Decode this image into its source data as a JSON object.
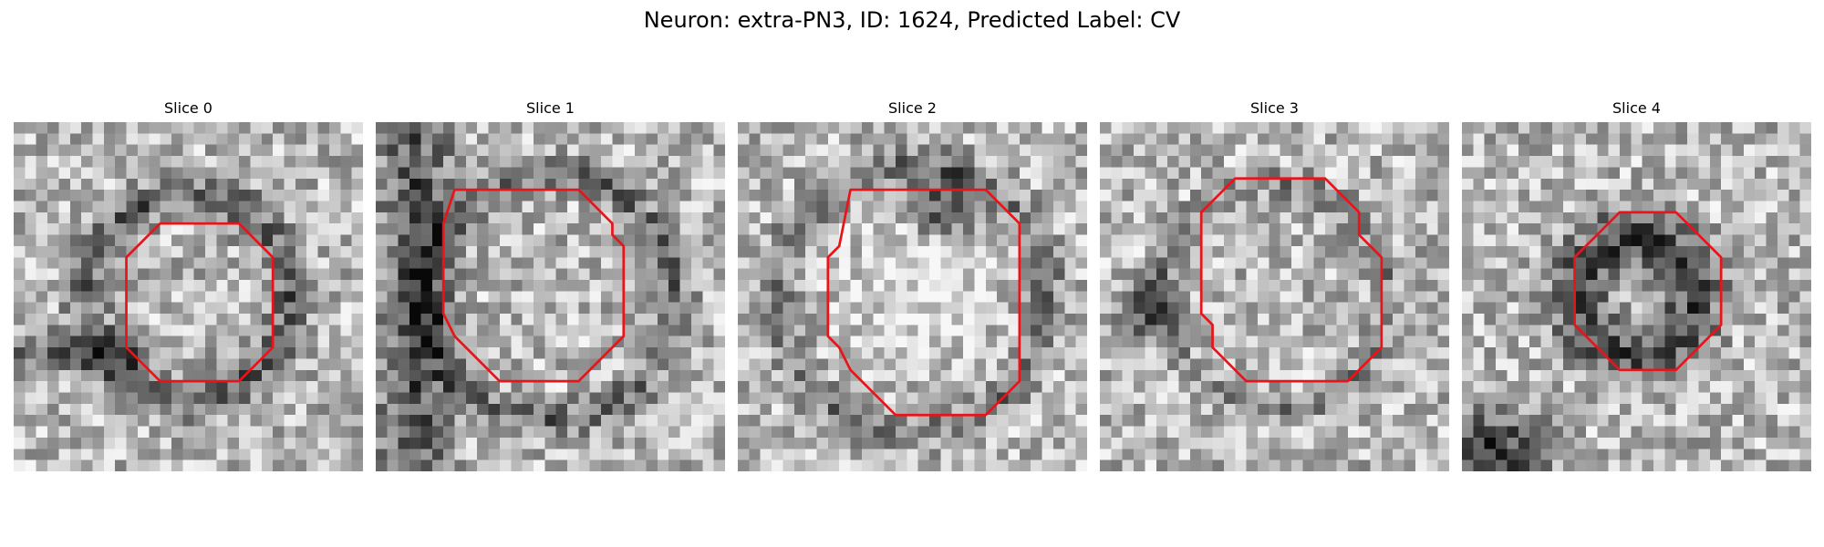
{
  "figure": {
    "title": "Neuron: extra-PN3, ID: 1624, Predicted Label: CV",
    "contour_color": "#e8141a",
    "panels": [
      {
        "title": "Slice 0",
        "seed": 11,
        "dark": "ring",
        "contour": [
          [
            13,
            9
          ],
          [
            20,
            9
          ],
          [
            23,
            12
          ],
          [
            23,
            20
          ],
          [
            20,
            23
          ],
          [
            13,
            23
          ],
          [
            10,
            20
          ],
          [
            10,
            12
          ]
        ]
      },
      {
        "title": "Slice 1",
        "seed": 23,
        "dark": "left",
        "contour": [
          [
            7,
            6
          ],
          [
            18,
            6
          ],
          [
            21,
            9
          ],
          [
            21,
            10
          ],
          [
            22,
            11
          ],
          [
            22,
            19
          ],
          [
            18,
            23
          ],
          [
            11,
            23
          ],
          [
            7,
            19
          ],
          [
            6,
            17
          ],
          [
            6,
            9
          ]
        ]
      },
      {
        "title": "Slice 2",
        "seed": 37,
        "dark": "top",
        "contour": [
          [
            10,
            6
          ],
          [
            22,
            6
          ],
          [
            25,
            9
          ],
          [
            25,
            23
          ],
          [
            22,
            26
          ],
          [
            14,
            26
          ],
          [
            10,
            22
          ],
          [
            9,
            20
          ],
          [
            8,
            19
          ],
          [
            8,
            12
          ],
          [
            9,
            11
          ]
        ]
      },
      {
        "title": "Slice 3",
        "seed": 51,
        "dark": "leftspot",
        "contour": [
          [
            12,
            5
          ],
          [
            20,
            5
          ],
          [
            23,
            8
          ],
          [
            23,
            10
          ],
          [
            25,
            12
          ],
          [
            25,
            20
          ],
          [
            22,
            23
          ],
          [
            13,
            23
          ],
          [
            10,
            20
          ],
          [
            10,
            18
          ],
          [
            9,
            17
          ],
          [
            9,
            8
          ]
        ]
      },
      {
        "title": "Slice 4",
        "seed": 67,
        "dark": "inner",
        "contour": [
          [
            14,
            8
          ],
          [
            19,
            8
          ],
          [
            23,
            12
          ],
          [
            23,
            18
          ],
          [
            19,
            22
          ],
          [
            14,
            22
          ],
          [
            10,
            18
          ],
          [
            10,
            12
          ]
        ]
      }
    ]
  }
}
